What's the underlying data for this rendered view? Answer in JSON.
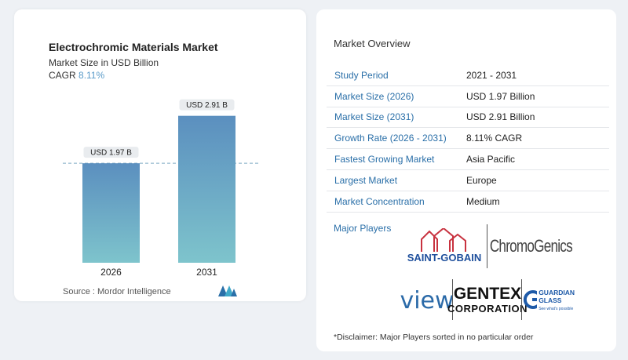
{
  "chart_data": {
    "type": "bar",
    "title": "Electrochromic Materials Market",
    "subtitle": "Market Size in USD Billion",
    "cagr_label": "CAGR",
    "cagr_value": "8.11%",
    "categories": [
      "2026",
      "2031"
    ],
    "values": [
      1.97,
      2.91
    ],
    "data_labels": [
      "USD 1.97 B",
      "USD 2.91 B"
    ],
    "ylim": [
      0,
      3.2
    ],
    "reference_line_value": 1.97,
    "colors": {
      "bar_top": "#5b8fbf",
      "bar_bottom": "#7ec4cc"
    }
  },
  "source": "Source :  Mordor Intelligence",
  "overview": {
    "title": "Market Overview",
    "rows": [
      {
        "key": "Study Period",
        "value": "2021 - 2031"
      },
      {
        "key": "Market Size (2026)",
        "value": "USD 1.97 Billion"
      },
      {
        "key": "Market Size (2031)",
        "value": "USD 2.91 Billion"
      },
      {
        "key": "Growth Rate (2026 - 2031)",
        "value": "8.11% CAGR"
      },
      {
        "key": "Fastest Growing Market",
        "value": "Asia Pacific"
      },
      {
        "key": "Largest Market",
        "value": "Europe"
      },
      {
        "key": "Market Concentration",
        "value": "Medium"
      }
    ]
  },
  "players": {
    "title": "Major Players",
    "logos": {
      "saint_gobain": "SAINT-GOBAIN",
      "chromogenics": "ChromoGenics",
      "view": "view",
      "gentex_1": "GENTEX",
      "gentex_2": "CORPORATION",
      "guardian_1": "GUARDIAN",
      "guardian_2": "GLASS",
      "guardian_tag": "See what's possible"
    }
  },
  "disclaimer": "*Disclaimer: Major Players sorted in no particular order"
}
